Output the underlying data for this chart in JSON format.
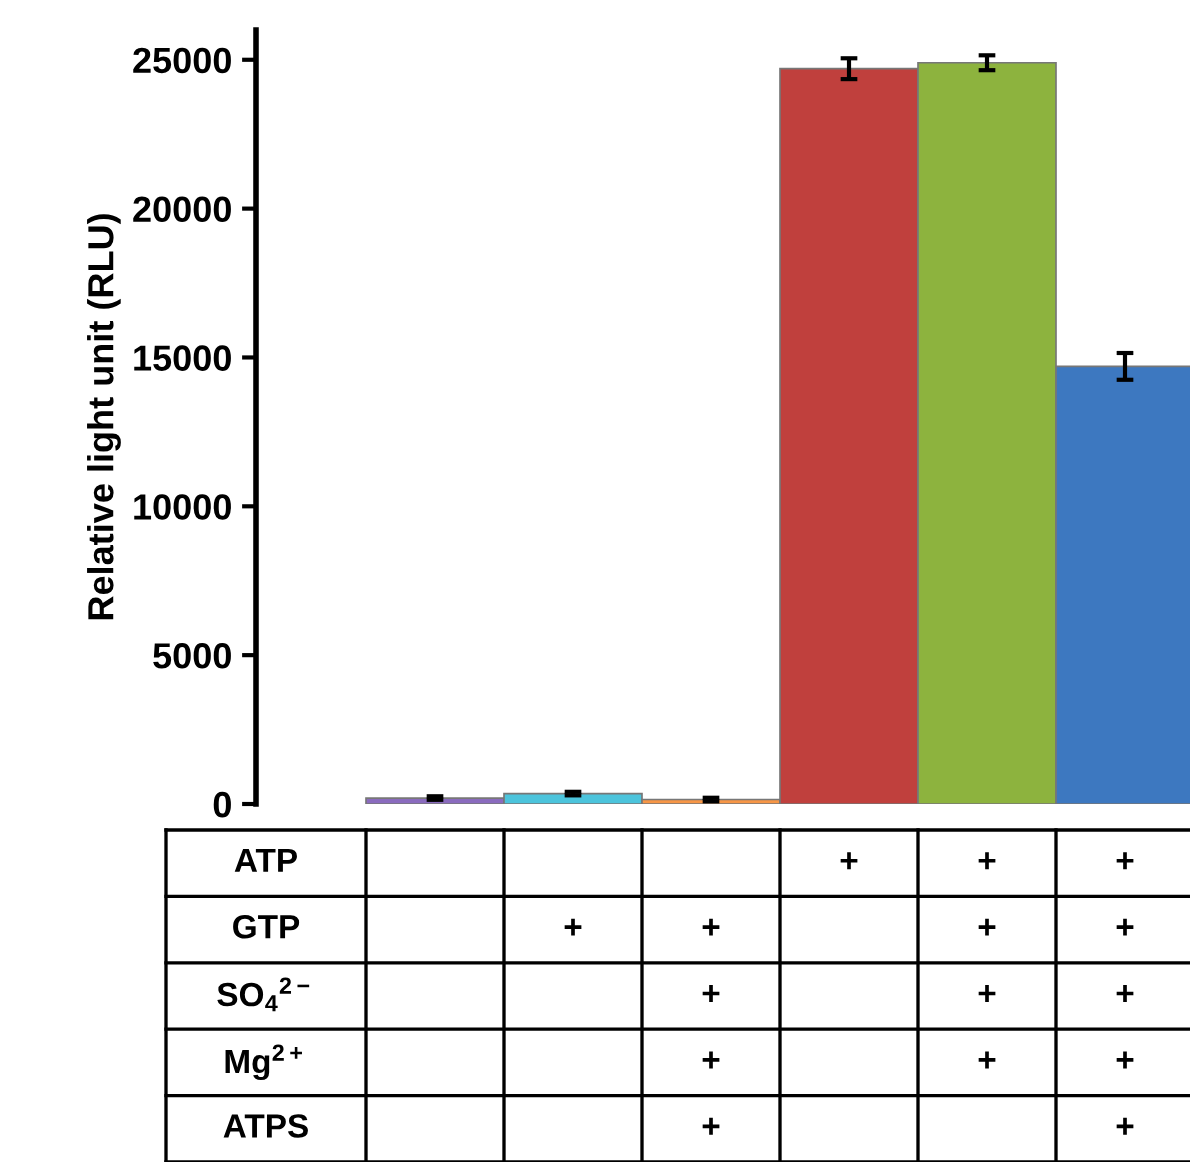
{
  "chart_data": {
    "type": "bar",
    "ylabel": "Relative light unit (RLU)",
    "categories": [
      null,
      null,
      null,
      null,
      null,
      null
    ],
    "values": [
      200,
      350,
      150,
      24700,
      24900,
      14700
    ],
    "errors": [
      60,
      60,
      60,
      350,
      250,
      450
    ],
    "colors": [
      "#8a6bbe",
      "#4cc4dc",
      "#f79646",
      "#c0403d",
      "#8db33e",
      "#3d78c0"
    ],
    "ylim": [
      0,
      26000
    ],
    "yticks": [
      0,
      5000,
      10000,
      15000,
      20000,
      25000
    ],
    "grid": false,
    "legend": false,
    "annotations": [
      "ATP\t\t\t\t+\t+\t+",
      "GTP\t\t+\t+\t\t+\t+",
      "SO$_{4}$$^{2−}$\t\t\t+\t\t+\t+",
      "Mg$^{2+}$\t\t\t+\t\t+\t+",
      "ATPS\t\t\t+\t\t\t+"
    ]
  }
}
